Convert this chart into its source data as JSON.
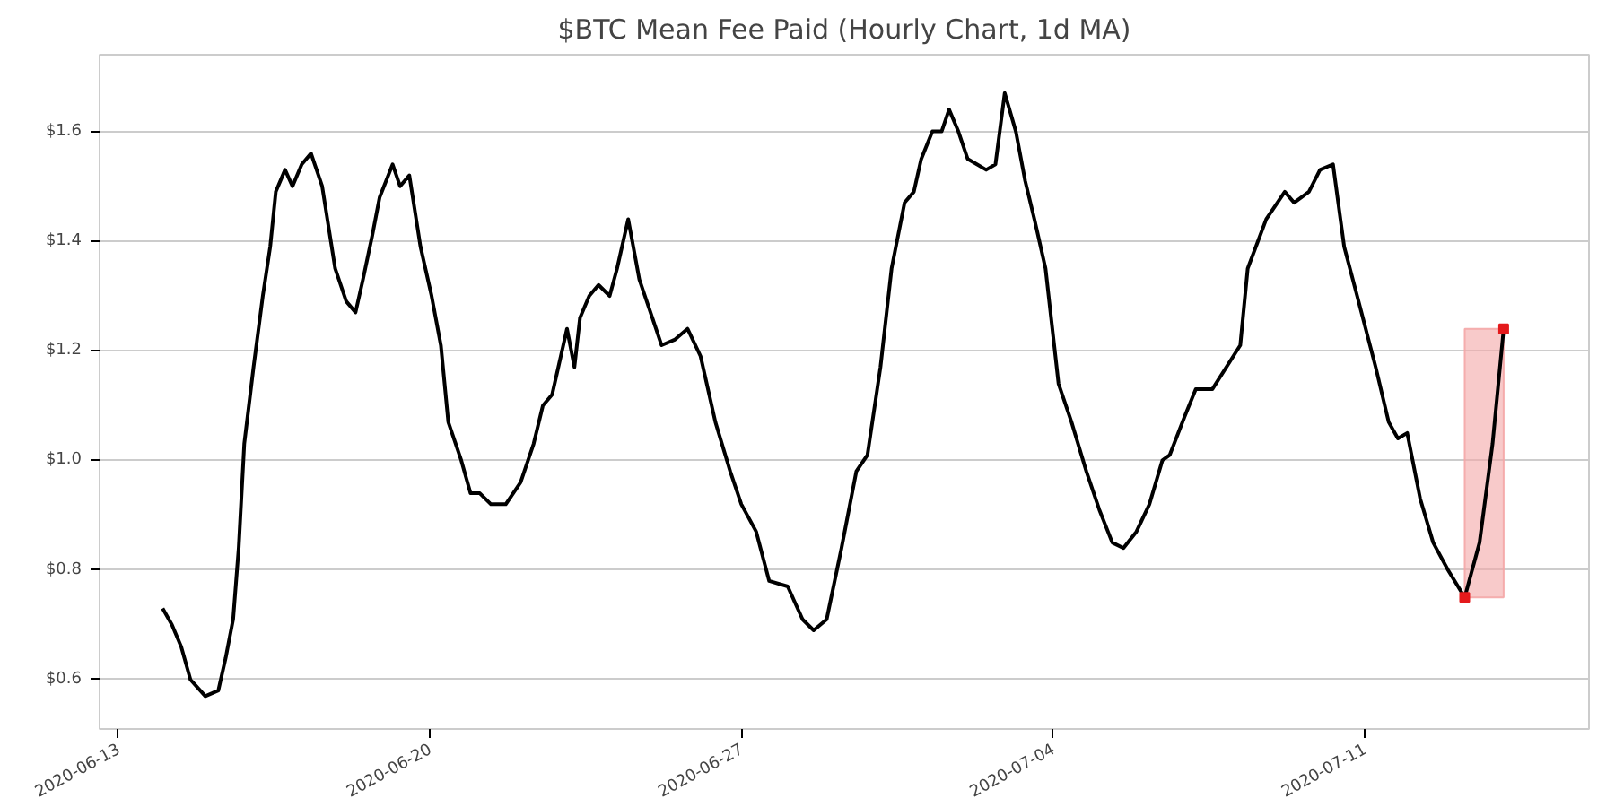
{
  "chart_data": {
    "type": "line",
    "title": "$BTC Mean Fee Paid (Hourly Chart, 1d MA)",
    "xlim": [
      "2020-06-12T14:00",
      "2020-07-16T01:00"
    ],
    "xticks": [
      "2020-06-13",
      "2020-06-20",
      "2020-06-27",
      "2020-07-04",
      "2020-07-11"
    ],
    "ylim": [
      0.51,
      1.74
    ],
    "yticks": [
      {
        "value": 0.6,
        "label": "$0.6"
      },
      {
        "value": 0.8,
        "label": "$0.8"
      },
      {
        "value": 1.0,
        "label": "$1.0"
      },
      {
        "value": 1.2,
        "label": "$1.2"
      },
      {
        "value": 1.4,
        "label": "$1.4"
      },
      {
        "value": 1.6,
        "label": "$1.6"
      }
    ],
    "grid": "y",
    "bands": [
      {
        "axis": "x",
        "from": "2020-07-13T06:00",
        "to": "2020-07-14T03:00",
        "color": "#f4a6a6"
      }
    ],
    "series": [
      {
        "color": "#000000",
        "x": [
          "2020-06-14T00:00",
          "2020-06-14T05:00",
          "2020-06-14T10:00",
          "2020-06-14T15:00",
          "2020-06-14T23:00",
          "2020-06-15T06:00",
          "2020-06-15T10:00",
          "2020-06-15T14:00",
          "2020-06-15T17:00",
          "2020-06-15T20:00",
          "2020-06-16T01:00",
          "2020-06-16T06:00",
          "2020-06-16T10:00",
          "2020-06-16T13:00",
          "2020-06-16T18:00",
          "2020-06-16T22:00",
          "2020-06-17T03:00",
          "2020-06-17T08:00",
          "2020-06-17T11:00",
          "2020-06-17T14:00",
          "2020-06-17T21:00",
          "2020-06-18T03:00",
          "2020-06-18T08:00",
          "2020-06-18T12:00",
          "2020-06-18T17:00",
          "2020-06-18T21:00",
          "2020-06-19T04:00",
          "2020-06-19T08:00",
          "2020-06-19T13:00",
          "2020-06-19T19:00",
          "2020-06-20T01:00",
          "2020-06-20T06:00",
          "2020-06-20T10:00",
          "2020-06-20T17:00",
          "2020-06-20T22:00",
          "2020-06-21T03:00",
          "2020-06-21T09:00",
          "2020-06-21T17:00",
          "2020-06-22T01:00",
          "2020-06-22T08:00",
          "2020-06-22T13:00",
          "2020-06-22T18:00",
          "2020-06-23T02:00",
          "2020-06-23T06:00",
          "2020-06-23T09:00",
          "2020-06-23T14:00",
          "2020-06-23T19:00",
          "2020-06-24T01:00",
          "2020-06-24T05:00",
          "2020-06-24T11:00",
          "2020-06-24T17:00",
          "2020-06-25T00:00",
          "2020-06-25T05:00",
          "2020-06-25T12:00",
          "2020-06-25T19:00",
          "2020-06-26T02:00",
          "2020-06-26T10:00",
          "2020-06-26T18:00",
          "2020-06-27T00:00",
          "2020-06-27T08:00",
          "2020-06-27T15:00",
          "2020-06-28T01:00",
          "2020-06-28T09:00",
          "2020-06-28T15:00",
          "2020-06-28T22:00",
          "2020-06-29T06:00",
          "2020-06-29T14:00",
          "2020-06-29T20:00",
          "2020-06-30T03:00",
          "2020-06-30T09:00",
          "2020-06-30T16:00",
          "2020-06-30T21:00",
          "2020-07-01T01:00",
          "2020-07-01T07:00",
          "2020-07-01T12:00",
          "2020-07-01T16:00",
          "2020-07-01T21:00",
          "2020-07-02T02:00",
          "2020-07-02T07:00",
          "2020-07-02T12:00",
          "2020-07-02T17:00",
          "2020-07-02T22:00",
          "2020-07-03T04:00",
          "2020-07-03T09:00",
          "2020-07-03T14:00",
          "2020-07-03T20:00",
          "2020-07-04T03:00",
          "2020-07-04T10:00",
          "2020-07-04T18:00",
          "2020-07-05T01:00",
          "2020-07-05T08:00",
          "2020-07-05T14:00",
          "2020-07-05T21:00",
          "2020-07-06T04:00",
          "2020-07-06T11:00",
          "2020-07-06T15:00",
          "2020-07-06T23:00",
          "2020-07-07T05:00",
          "2020-07-07T14:00",
          "2020-07-08T05:00",
          "2020-07-08T09:00",
          "2020-07-08T19:00",
          "2020-07-09T05:00",
          "2020-07-09T10:00",
          "2020-07-09T18:00",
          "2020-07-10T00:00",
          "2020-07-10T07:00",
          "2020-07-10T13:00",
          "2020-07-10T20:00",
          "2020-07-11T06:00",
          "2020-07-11T13:00",
          "2020-07-11T18:00",
          "2020-07-11T23:00",
          "2020-07-12T06:00",
          "2020-07-12T13:00",
          "2020-07-12T21:00",
          "2020-07-13T06:00",
          "2020-07-13T14:00",
          "2020-07-13T21:00",
          "2020-07-14T03:00"
        ],
        "values": [
          0.73,
          0.7,
          0.66,
          0.6,
          0.57,
          0.58,
          0.64,
          0.71,
          0.84,
          1.03,
          1.17,
          1.3,
          1.39,
          1.49,
          1.53,
          1.5,
          1.54,
          1.56,
          1.53,
          1.5,
          1.35,
          1.29,
          1.27,
          1.33,
          1.41,
          1.48,
          1.54,
          1.5,
          1.52,
          1.39,
          1.3,
          1.21,
          1.07,
          1.0,
          0.94,
          0.94,
          0.92,
          0.92,
          0.96,
          1.03,
          1.1,
          1.12,
          1.24,
          1.17,
          1.26,
          1.3,
          1.32,
          1.3,
          1.35,
          1.44,
          1.33,
          1.26,
          1.21,
          1.22,
          1.24,
          1.19,
          1.07,
          0.98,
          0.92,
          0.87,
          0.78,
          0.77,
          0.71,
          0.69,
          0.71,
          0.84,
          0.98,
          1.01,
          1.17,
          1.35,
          1.47,
          1.49,
          1.55,
          1.6,
          1.6,
          1.64,
          1.6,
          1.55,
          1.54,
          1.53,
          1.54,
          1.67,
          1.6,
          1.51,
          1.44,
          1.35,
          1.14,
          1.07,
          0.98,
          0.91,
          0.85,
          0.84,
          0.87,
          0.92,
          1.0,
          1.01,
          1.08,
          1.13,
          1.13,
          1.21,
          1.35,
          1.44,
          1.49,
          1.47,
          1.49,
          1.53,
          1.54,
          1.39,
          1.3,
          1.17,
          1.07,
          1.04,
          1.05,
          0.93,
          0.85,
          0.8,
          0.75,
          0.85,
          1.03,
          1.24
        ]
      },
      {
        "type": "scatter",
        "marker": "square",
        "color": "#e41a1c",
        "x": [
          "2020-07-13T06:00",
          "2020-07-14T03:00"
        ],
        "values": [
          0.75,
          1.24
        ]
      }
    ]
  }
}
